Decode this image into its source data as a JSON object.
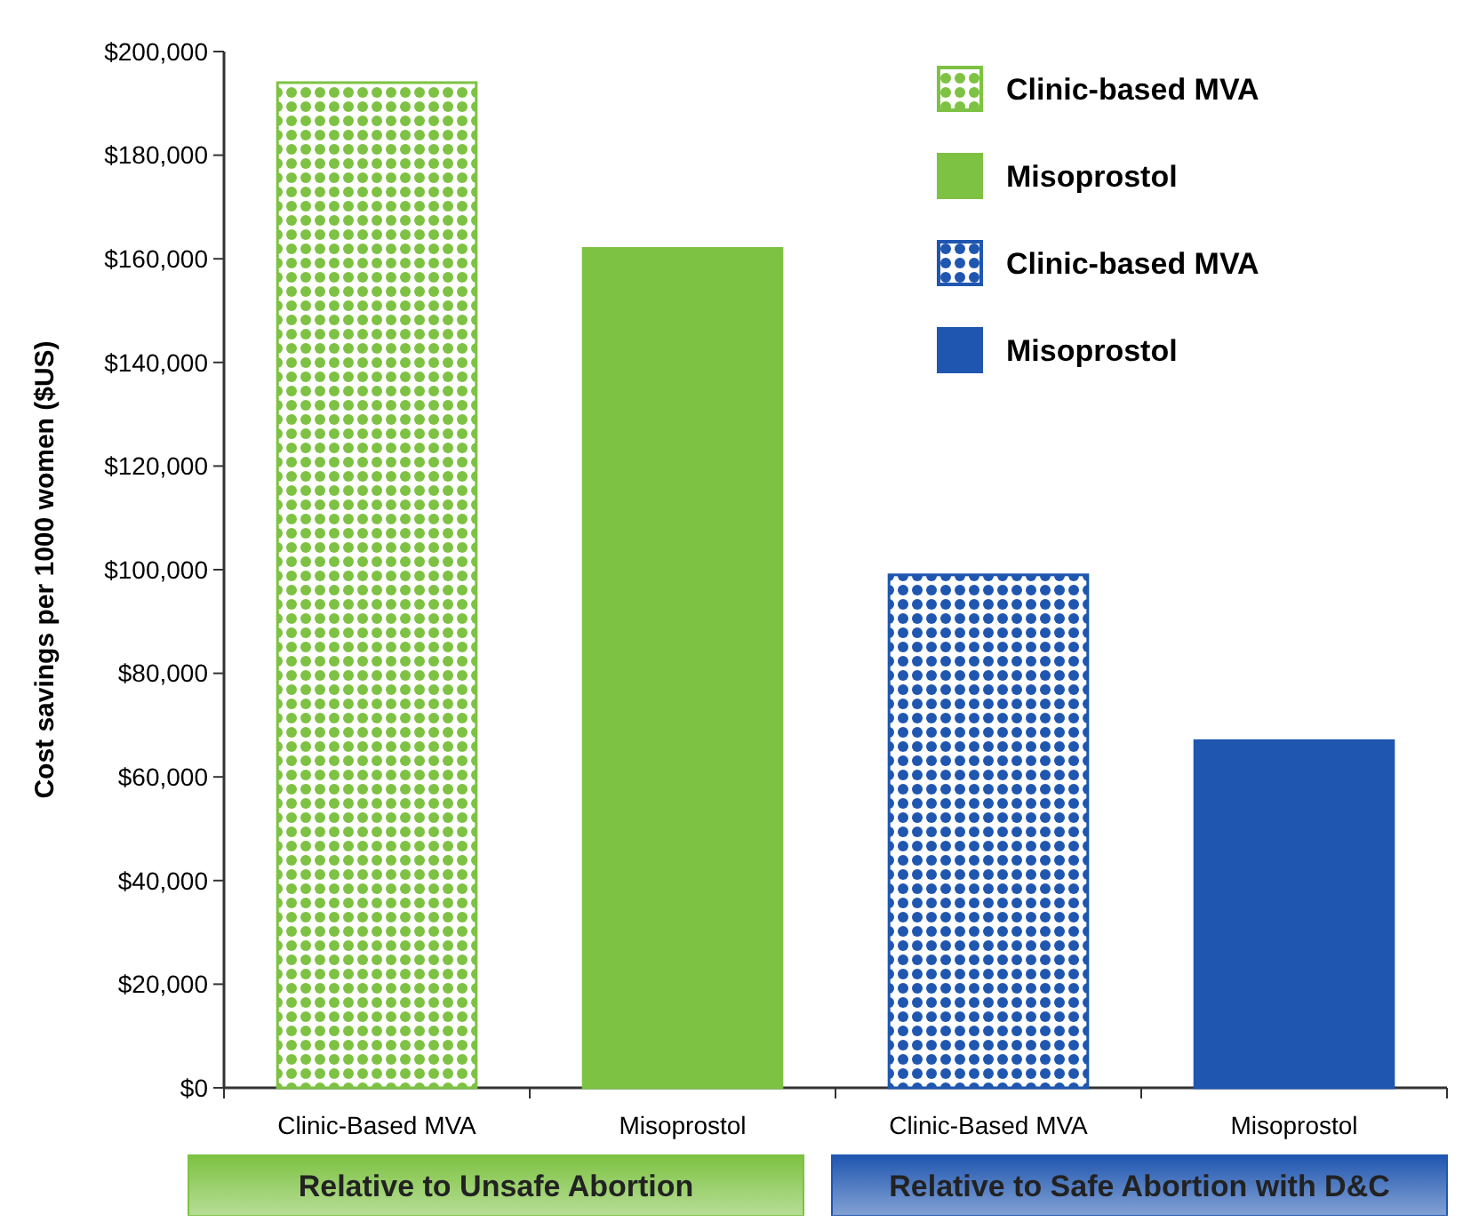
{
  "chart_data": {
    "type": "bar",
    "ylabel": "Cost savings per 1000 women ($US)",
    "categories": [
      "Clinic-Based MVA",
      "Misoprostol",
      "Clinic-Based MVA",
      "Misoprostol"
    ],
    "series": [
      {
        "name": "Clinic-based MVA",
        "color": "#7dc242",
        "values": [
          194000,
          null,
          null,
          null
        ]
      },
      {
        "name": "Misoprostol",
        "color": "#7dc242",
        "values": [
          null,
          162000,
          null,
          null
        ]
      },
      {
        "name": "Clinic-based MVA",
        "color": "#1f56b0",
        "values": [
          null,
          null,
          99000,
          null
        ]
      },
      {
        "name": "Misoprostol",
        "color": "#1f56b0",
        "values": [
          null,
          null,
          null,
          67000
        ]
      }
    ],
    "ylim": [
      0,
      200000
    ],
    "yticks": [
      {
        "value": 0,
        "label": "$0"
      },
      {
        "value": 20000,
        "label": "$20,000"
      },
      {
        "value": 40000,
        "label": "$40,000"
      },
      {
        "value": 60000,
        "label": "$60,000"
      },
      {
        "value": 80000,
        "label": "$80,000"
      },
      {
        "value": 100000,
        "label": "$100,000"
      },
      {
        "value": 120000,
        "label": "$120,000"
      },
      {
        "value": 140000,
        "label": "$140,000"
      },
      {
        "value": 160000,
        "label": "$160,000"
      },
      {
        "value": 180000,
        "label": "$180,000"
      },
      {
        "value": 200000,
        "label": "$200,000"
      }
    ],
    "legend": "top right",
    "annotations": [
      "Relative to Unsafe Abortion",
      "Relative to Safe Abortion with D&C"
    ]
  }
}
